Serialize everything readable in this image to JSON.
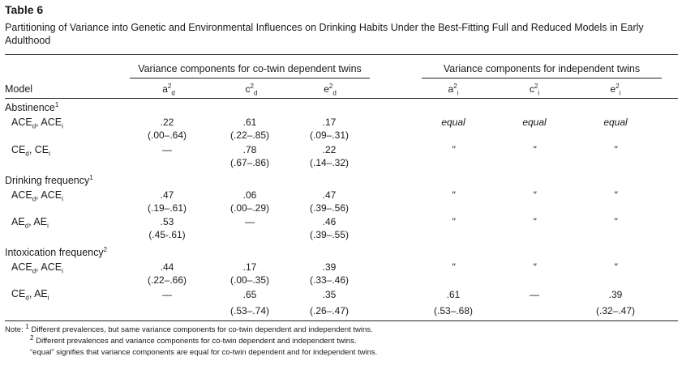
{
  "table": {
    "label": "Table 6",
    "caption": "Partitioning of Variance into Genetic and Environmental Influences on Drinking Habits Under the Best-Fitting Full and Reduced Models in Early Adulthood",
    "group_headers": {
      "dependent": "Variance components for co-twin dependent twins",
      "independent": "Variance components for independent twins"
    },
    "model_header": "Model",
    "columns": [
      {
        "base": "a",
        "sup": "2",
        "sub": "d"
      },
      {
        "base": "c",
        "sup": "2",
        "sub": "d"
      },
      {
        "base": "e",
        "sup": "2",
        "sub": "d"
      },
      {
        "base": "a",
        "sup": "2",
        "sub": "i"
      },
      {
        "base": "c",
        "sup": "2",
        "sub": "i"
      },
      {
        "base": "e",
        "sup": "2",
        "sub": "i"
      }
    ],
    "sections": [
      {
        "title": "Abstinence",
        "note": "1"
      },
      {
        "title": "Drinking frequency",
        "note": "1"
      },
      {
        "title": "Intoxication frequency",
        "note": "2"
      }
    ],
    "rows": [
      {
        "m1": "ACE",
        "s1": "d",
        "m2": "ACE",
        "s2": "i",
        "a_d": ".22",
        "a_d_ci": "(.00–.64)",
        "c_d": ".61",
        "c_d_ci": "(.22–.85)",
        "e_d": ".17",
        "e_d_ci": "(.09–.31)",
        "a_i": "equal",
        "c_i": "equal",
        "e_i": "equal"
      },
      {
        "m1": "CE",
        "s1": "d",
        "m2": "CE",
        "s2": "i",
        "a_d": "—",
        "c_d": ".78",
        "c_d_ci": "(.67–.86)",
        "e_d": ".22",
        "e_d_ci": "(.14–.32)",
        "a_i": "\"",
        "c_i": "\"",
        "e_i": "\""
      },
      {
        "m1": "ACE",
        "s1": "d",
        "m2": "ACE",
        "s2": "i",
        "a_d": ".47",
        "a_d_ci": "(.19–.61)",
        "c_d": ".06",
        "c_d_ci": "(.00–.29)",
        "e_d": ".47",
        "e_d_ci": "(.39–.56)",
        "a_i": "\"",
        "c_i": "\"",
        "e_i": "\""
      },
      {
        "m1": "AE",
        "s1": "d",
        "m2": "AE",
        "s2": "i",
        "a_d": ".53",
        "a_d_ci": "(.45-.61)",
        "c_d": "—",
        "e_d": ".46",
        "e_d_ci": "(.39–.55)",
        "a_i": "\"",
        "c_i": "\"",
        "e_i": "\""
      },
      {
        "m1": "ACE",
        "s1": "d",
        "m2": "ACE",
        "s2": "i",
        "a_d": ".44",
        "a_d_ci": "(.22–.66)",
        "c_d": ".17",
        "c_d_ci": "(.00–.35)",
        "e_d": ".39",
        "e_d_ci": "(.33–.46)",
        "a_i": "\"",
        "c_i": "\"",
        "e_i": "\""
      },
      {
        "m1": "CE",
        "s1": "d",
        "m2": "AE",
        "s2": "i",
        "a_d": "—",
        "c_d": ".65",
        "c_d_ci": "(.53–.74)",
        "e_d": ".35",
        "e_d_ci": "(.26–.47)",
        "a_i": ".61",
        "a_i_ci": "(.53–.68)",
        "c_i": "—",
        "e_i": ".39",
        "e_i_ci": "(.32–.47)"
      }
    ],
    "notes": {
      "prefix": "Note:",
      "n1_mark": "1",
      "n1": "Different prevalences, but same variance components for co-twin dependent and independent twins.",
      "n2_mark": "2",
      "n2": "Different prevalences and variance components for co-twin dependent and independent twins.",
      "n3": "“equal” signifies that variance components are equal for co-twin dependent and for independent twins."
    }
  }
}
